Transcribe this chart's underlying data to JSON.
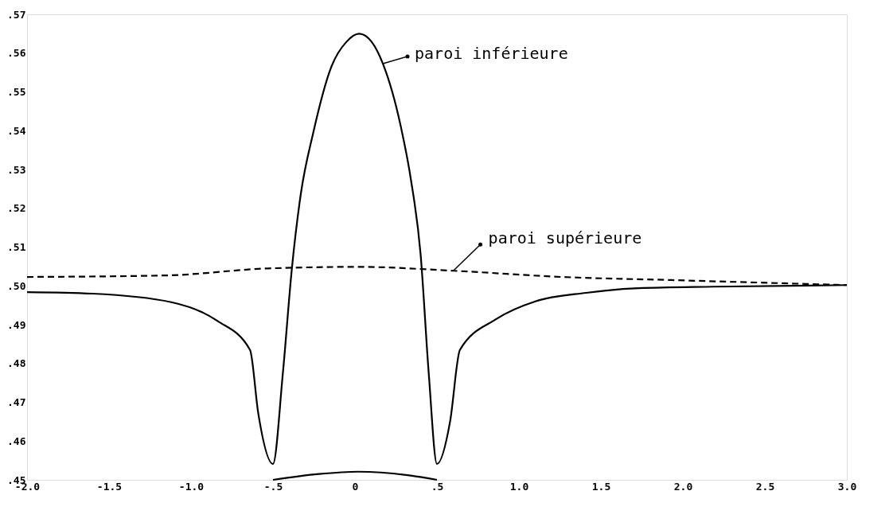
{
  "chart_data": {
    "type": "line",
    "xlim": [
      -2.0,
      3.0
    ],
    "ylim": [
      0.45,
      0.57
    ],
    "xticks": [
      {
        "value": -2.0,
        "label": "-2.0"
      },
      {
        "value": -1.5,
        "label": "-1.5"
      },
      {
        "value": -1.0,
        "label": "-1.0"
      },
      {
        "value": -0.5,
        "label": "-.5"
      },
      0,
      {
        "value": 0.5,
        "label": ".5"
      },
      {
        "value": 1.0,
        "label": "1.0"
      },
      {
        "value": 1.5,
        "label": "1.5"
      },
      {
        "value": 2.0,
        "label": "2.0"
      },
      {
        "value": 2.5,
        "label": "2.5"
      },
      {
        "value": 3.0,
        "label": "3.0"
      }
    ],
    "yticks": [
      {
        "value": 0.45,
        "label": ".45"
      },
      {
        "value": 0.46,
        "label": ".46"
      },
      {
        "value": 0.47,
        "label": ".47"
      },
      {
        "value": 0.48,
        "label": ".48"
      },
      {
        "value": 0.49,
        "label": ".49"
      },
      {
        "value": 0.5,
        "label": ".50"
      },
      {
        "value": 0.51,
        "label": ".51"
      },
      {
        "value": 0.52,
        "label": ".52"
      },
      {
        "value": 0.53,
        "label": ".53"
      },
      {
        "value": 0.54,
        "label": ".54"
      },
      {
        "value": 0.55,
        "label": ".55"
      },
      {
        "value": 0.56,
        "label": ".56"
      },
      {
        "value": 0.57,
        "label": ".57"
      }
    ],
    "grid": false,
    "marker": "none",
    "series": [
      {
        "color": "#000000",
        "line_style": "solid",
        "x": [
          -2.0,
          -1.6,
          -1.12,
          -0.84,
          -0.64,
          -0.59,
          -0.5,
          -0.44,
          -0.385,
          -0.33,
          -0.255,
          -0.144,
          -0.05,
          0.025,
          0.1,
          0.17,
          0.28,
          0.34,
          0.4,
          0.45,
          0.5,
          0.58,
          0.64,
          0.86,
          1.1,
          1.41,
          1.73,
          2.19,
          3.0
        ],
        "values": [
          0.4984,
          0.498,
          0.4958,
          0.491,
          0.4835,
          0.4672,
          0.4541,
          0.4774,
          0.5044,
          0.5238,
          0.5394,
          0.5565,
          0.563,
          0.565,
          0.563,
          0.5573,
          0.541,
          0.5277,
          0.5083,
          0.4774,
          0.4541,
          0.465,
          0.4835,
          0.4914,
          0.496,
          0.4982,
          0.4994,
          0.4998,
          0.5002
        ]
      },
      {
        "color": "#000000",
        "line_style": "dashed",
        "x": [
          -2.0,
          -1.15,
          -0.53,
          0.02,
          0.6,
          1.26,
          1.93,
          3.0
        ],
        "values": [
          0.5023,
          0.5027,
          0.5045,
          0.5049,
          0.5039,
          0.5023,
          0.5015,
          0.5002
        ]
      },
      {
        "color": "#000000",
        "line_style": "solid",
        "x": [
          -0.5,
          -0.22,
          0.02,
          0.34,
          0.5
        ],
        "values": [
          0.45,
          0.4515,
          0.4521,
          0.4511,
          0.45
        ]
      }
    ],
    "annotations": [
      {
        "text": "paroi inférieure",
        "x": 0.17,
        "y": 0.5573
      },
      {
        "text": "paroi supérieure",
        "x": 0.6,
        "y": 0.5039
      }
    ]
  }
}
